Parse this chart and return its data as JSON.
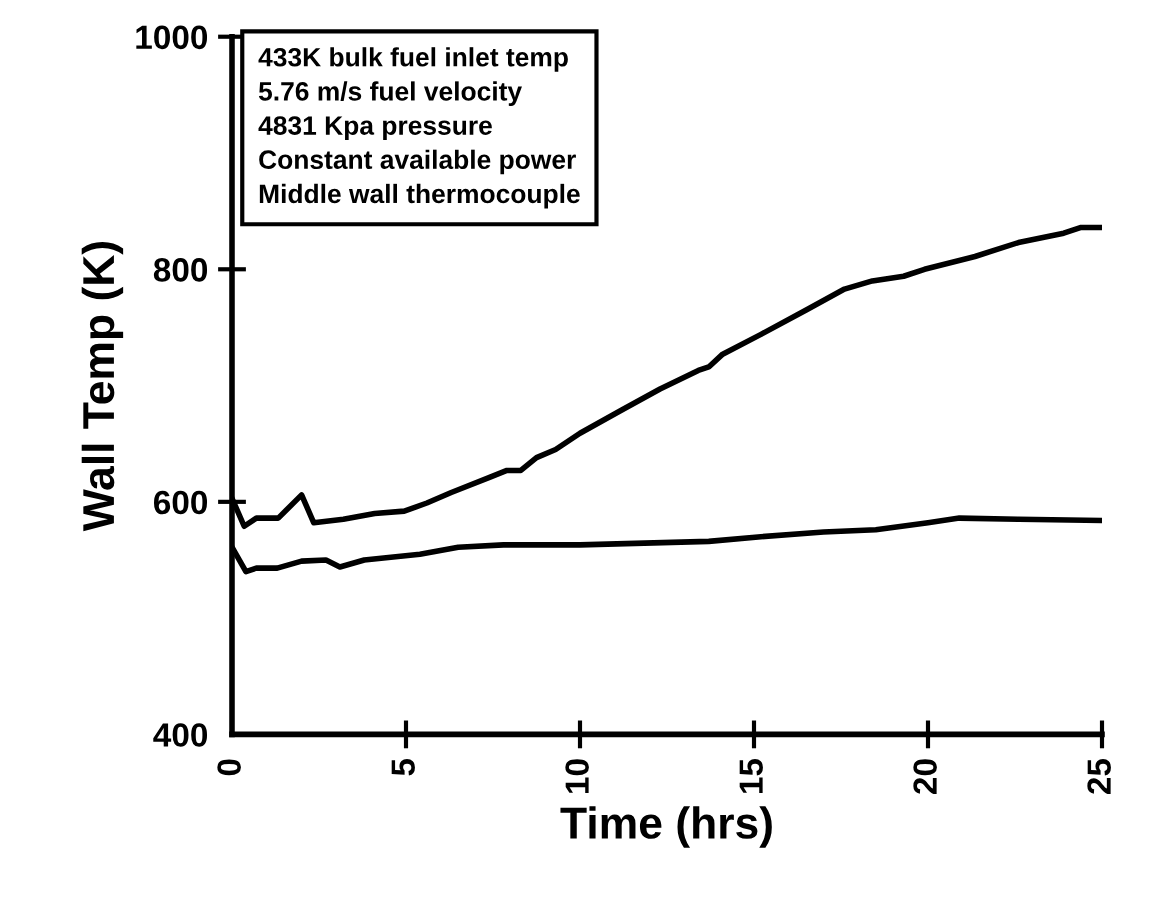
{
  "chart_data": {
    "type": "line",
    "xlabel": "Time (hrs)",
    "ylabel": "Wall Temp (K)",
    "annotations": [
      "433K bulk fuel inlet temp\n5.76 m/s fuel velocity\n4831 Kpa pressure\nConstant available power\nMiddle wall thermocouple"
    ],
    "xlim": [
      0,
      25
    ],
    "ylim": [
      400,
      1000
    ],
    "xticks": [
      0,
      5,
      10,
      15,
      20,
      25
    ],
    "yticks": [
      400,
      600,
      800,
      1000
    ],
    "grid": false,
    "legend": false,
    "marker": "none",
    "line_style": "solid",
    "series": [
      {
        "color": "#000000",
        "x": [
          0,
          0.35,
          0.7,
          1.33,
          2.0,
          2.35,
          3.2,
          4.1,
          4.95,
          5.6,
          6.3,
          7.4,
          7.9,
          8.3,
          8.75,
          9.3,
          10.0,
          11.2,
          12.3,
          13.4,
          13.7,
          14.1,
          15.2,
          16.5,
          17.6,
          18.4,
          19.3,
          19.9,
          21.35,
          22.6,
          23.9,
          24.4,
          25
        ],
        "values": [
          603,
          579,
          586,
          586,
          606,
          582,
          585,
          590,
          592,
          599,
          608,
          621,
          627,
          627,
          638,
          645,
          659,
          679,
          697,
          713,
          716,
          727,
          744,
          765,
          783,
          790,
          794,
          800,
          811,
          823,
          831,
          836,
          836
        ]
      },
      {
        "color": "#000000",
        "x": [
          0,
          0.4,
          0.7,
          1.3,
          2.0,
          2.7,
          3.1,
          3.8,
          5.4,
          6.5,
          7.8,
          10,
          13.7,
          15.2,
          17,
          18.5,
          20,
          20.9,
          22.6,
          25
        ],
        "values": [
          561,
          540,
          543,
          543,
          549,
          550,
          544,
          550,
          555,
          561,
          563,
          563,
          566,
          570,
          574,
          576,
          582,
          586,
          585,
          584
        ]
      }
    ]
  }
}
